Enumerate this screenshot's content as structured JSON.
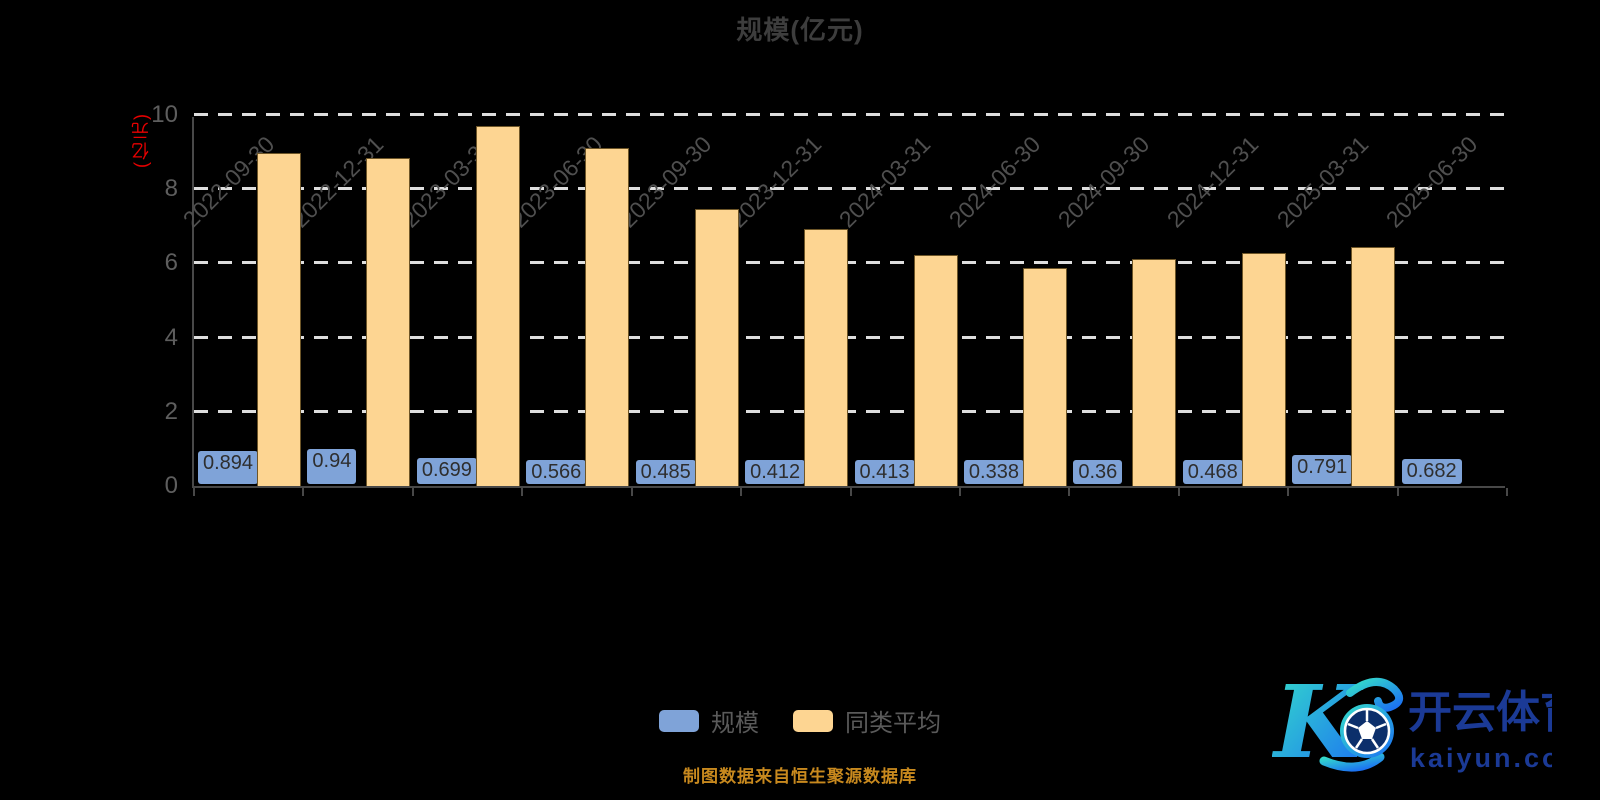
{
  "title": "规模(亿元)",
  "y_axis_unit": "(亿元)",
  "footer_note": "制图数据来自恒生聚源数据库",
  "watermark": {
    "brand_letter": "K",
    "brand_name": "开云体育",
    "brand_domain": "kaiyun.com"
  },
  "colors": {
    "background": "#000000",
    "scale_series": "#7fa3d8",
    "peer_series": "#fdd592",
    "title_text": "#3d3d3d",
    "axis_unit_text": "#e60000",
    "footer_text": "#c8891e",
    "gridline": "#dedede",
    "axis_line": "#484848",
    "logo_navy": "#1b3a96",
    "logo_gradient_start": "#35dfc9",
    "logo_gradient_end": "#1b6ef3"
  },
  "legend": [
    {
      "label": "规模",
      "color": "#7fa3d8"
    },
    {
      "label": "同类平均",
      "color": "#fdd592"
    }
  ],
  "chart_data": {
    "type": "bar",
    "title": "规模(亿元)",
    "ylabel": "(亿元)",
    "ylim": [
      0,
      10
    ],
    "yticks": [
      0,
      2,
      4,
      6,
      8,
      10
    ],
    "grid": "dashed-horizontal",
    "legend_position": "bottom",
    "categories": [
      "2022-09-30",
      "2022-12-31",
      "2023-03-31",
      "2023-06-30",
      "2023-09-30",
      "2023-12-31",
      "2024-03-31",
      "2024-06-30",
      "2024-09-30",
      "2024-12-31",
      "2025-03-31",
      "2025-06-30"
    ],
    "series": [
      {
        "name": "规模",
        "color": "#7fa3d8",
        "values": [
          0.894,
          0.94,
          0.699,
          0.566,
          0.485,
          0.412,
          0.413,
          0.338,
          0.36,
          0.468,
          0.791,
          0.682
        ],
        "labels": [
          "0.894",
          "0.94",
          "0.699",
          "0.566",
          "0.485",
          "0.412",
          "0.413",
          "0.338",
          "0.36",
          "0.468",
          "0.791",
          "0.682"
        ]
      },
      {
        "name": "同类平均",
        "color": "#fdd592",
        "values": [
          8.97,
          8.85,
          9.7,
          9.12,
          7.48,
          6.92,
          6.22,
          5.87,
          6.12,
          6.27,
          6.45,
          null
        ]
      }
    ]
  }
}
